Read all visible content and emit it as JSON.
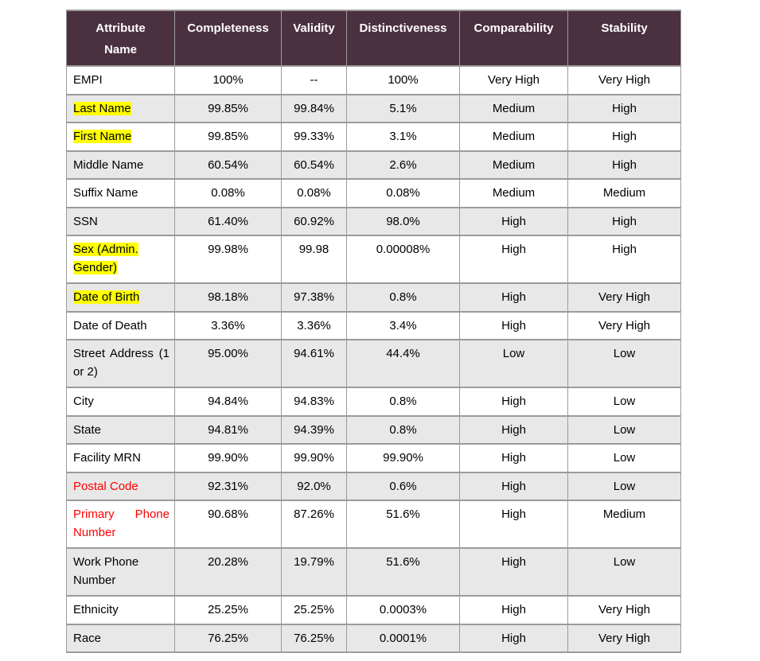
{
  "colors": {
    "header_bg": "#4b3040",
    "header_text": "#ffffff",
    "row_alt_bg": "#e8e8e8",
    "border": "#9b9b9b",
    "highlight_yellow": "#ffff00",
    "red_text": "#ff0000",
    "body_text": "#000000"
  },
  "table": {
    "columns": [
      {
        "key": "attribute-name",
        "label": "Attribute Name"
      },
      {
        "key": "completeness",
        "label": "Completeness"
      },
      {
        "key": "validity",
        "label": "Validity"
      },
      {
        "key": "distinctiveness",
        "label": "Distinctiveness"
      },
      {
        "key": "comparability",
        "label": "Comparability"
      },
      {
        "key": "stability",
        "label": "Stability"
      }
    ],
    "rows": [
      {
        "name": "EMPI",
        "values": [
          "100%",
          "--",
          "100%",
          "Very High",
          "Very High"
        ],
        "style": "normal",
        "tall": false,
        "justify": false
      },
      {
        "name": "Last Name",
        "values": [
          "99.85%",
          "99.84%",
          "5.1%",
          "Medium",
          "High"
        ],
        "style": "highlight",
        "tall": false,
        "justify": false
      },
      {
        "name": "First Name",
        "values": [
          "99.85%",
          "99.33%",
          "3.1%",
          "Medium",
          "High"
        ],
        "style": "highlight",
        "tall": false,
        "justify": false
      },
      {
        "name": "Middle Name",
        "values": [
          "60.54%",
          "60.54%",
          "2.6%",
          "Medium",
          "High"
        ],
        "style": "normal",
        "tall": false,
        "justify": false
      },
      {
        "name": "Suffix Name",
        "values": [
          "0.08%",
          "0.08%",
          "0.08%",
          "Medium",
          "Medium"
        ],
        "style": "normal",
        "tall": false,
        "justify": false
      },
      {
        "name": "SSN",
        "values": [
          "61.40%",
          "60.92%",
          "98.0%",
          "High",
          "High"
        ],
        "style": "normal",
        "tall": false,
        "justify": false
      },
      {
        "name": "Sex (Admin. Gender)",
        "values": [
          "99.98%",
          "99.98",
          "0.00008%",
          "High",
          "High"
        ],
        "style": "highlight",
        "tall": true,
        "justify": false
      },
      {
        "name": "Date of Birth",
        "values": [
          "98.18%",
          "97.38%",
          "0.8%",
          "High",
          "Very High"
        ],
        "style": "highlight",
        "tall": false,
        "justify": false
      },
      {
        "name": "Date of Death",
        "values": [
          "3.36%",
          "3.36%",
          "3.4%",
          "High",
          "Very High"
        ],
        "style": "normal",
        "tall": false,
        "justify": false
      },
      {
        "name": "Street Address (1 or 2)",
        "values": [
          "95.00%",
          "94.61%",
          "44.4%",
          "Low",
          "Low"
        ],
        "style": "normal",
        "tall": true,
        "justify": true
      },
      {
        "name": "City",
        "values": [
          "94.84%",
          "94.83%",
          "0.8%",
          "High",
          "Low"
        ],
        "style": "normal",
        "tall": false,
        "justify": false
      },
      {
        "name": "State",
        "values": [
          "94.81%",
          "94.39%",
          "0.8%",
          "High",
          "Low"
        ],
        "style": "normal",
        "tall": false,
        "justify": false
      },
      {
        "name": "Facility MRN",
        "values": [
          "99.90%",
          "99.90%",
          "99.90%",
          "High",
          "Low"
        ],
        "style": "normal",
        "tall": false,
        "justify": false
      },
      {
        "name": "Postal Code",
        "values": [
          "92.31%",
          "92.0%",
          "0.6%",
          "High",
          "Low"
        ],
        "style": "red",
        "tall": false,
        "justify": false
      },
      {
        "name": "Primary Phone Number",
        "values": [
          "90.68%",
          "87.26%",
          "51.6%",
          "High",
          "Medium"
        ],
        "style": "red",
        "tall": true,
        "justify": true
      },
      {
        "name": "Work Phone Number",
        "values": [
          "20.28%",
          "19.79%",
          "51.6%",
          "High",
          "Low"
        ],
        "style": "normal",
        "tall": true,
        "justify": false
      },
      {
        "name": "Ethnicity",
        "values": [
          "25.25%",
          "25.25%",
          "0.0003%",
          "High",
          "Very High"
        ],
        "style": "normal",
        "tall": false,
        "justify": false
      },
      {
        "name": "Race",
        "values": [
          "76.25%",
          "76.25%",
          "0.0001%",
          "High",
          "Very High"
        ],
        "style": "normal",
        "tall": false,
        "justify": false
      }
    ]
  }
}
